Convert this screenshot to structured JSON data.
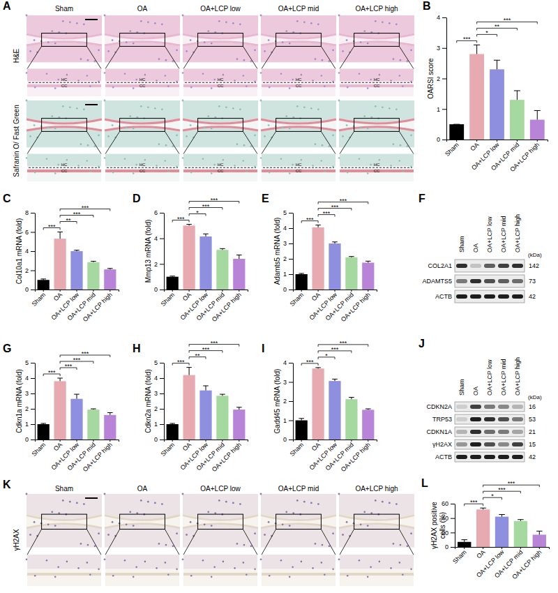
{
  "chart_data": [
    {
      "panel": "B",
      "type": "bar",
      "ylabel": "OARSI score",
      "categories": [
        "Sham",
        "OA",
        "OA+LCP low",
        "OA+LCP mid",
        "OA+LCP high"
      ],
      "values": [
        0.5,
        2.8,
        2.3,
        1.3,
        0.65
      ],
      "errors": [
        0,
        0.3,
        0.3,
        0.3,
        0.3
      ],
      "colors": [
        "#000000",
        "#e6aab0",
        "#8f8fdf",
        "#a6d9a0",
        "#b884d8"
      ],
      "ylim": [
        0,
        4
      ],
      "yticks": [
        0,
        1,
        2,
        3,
        4
      ],
      "comparisons": [
        {
          "groups": [
            0,
            1
          ],
          "label": "***"
        },
        {
          "groups": [
            1,
            2
          ],
          "label": "*"
        },
        {
          "groups": [
            1,
            3
          ],
          "label": "**"
        },
        {
          "groups": [
            1,
            4
          ],
          "label": "***"
        }
      ]
    },
    {
      "panel": "C",
      "type": "bar",
      "ylabel": "Col10a1 mRNA (fold)",
      "categories": [
        "Sham",
        "OA",
        "OA+LCP low",
        "OA+LCP mid",
        "OA+LCP high"
      ],
      "values": [
        1,
        5.3,
        4.0,
        2.85,
        2.1
      ],
      "errors": [
        0.1,
        0.7,
        0.1,
        0.1,
        0.1
      ],
      "colors": [
        "#000000",
        "#e6aab0",
        "#8f8fdf",
        "#a6d9a0",
        "#b884d8"
      ],
      "ylim": [
        0,
        8
      ],
      "yticks": [
        0,
        2,
        4,
        6,
        8
      ],
      "comparisons": [
        {
          "groups": [
            0,
            1
          ],
          "label": "***"
        },
        {
          "groups": [
            1,
            2
          ],
          "label": "**"
        },
        {
          "groups": [
            1,
            3
          ],
          "label": "***"
        },
        {
          "groups": [
            1,
            4
          ],
          "label": "***"
        }
      ]
    },
    {
      "panel": "D",
      "type": "bar",
      "ylabel": "Mmp13 mRNA (fold)",
      "categories": [
        "Sham",
        "OA",
        "OA+LCP low",
        "OA+LCP mid",
        "OA+LCP high"
      ],
      "values": [
        1,
        5.0,
        4.15,
        3.1,
        2.4
      ],
      "errors": [
        0.05,
        0.1,
        0.2,
        0.1,
        0.3
      ],
      "colors": [
        "#000000",
        "#e6aab0",
        "#8f8fdf",
        "#a6d9a0",
        "#b884d8"
      ],
      "ylim": [
        0,
        6
      ],
      "yticks": [
        0,
        2,
        4,
        6
      ],
      "comparisons": [
        {
          "groups": [
            0,
            1
          ],
          "label": "***"
        },
        {
          "groups": [
            1,
            2
          ],
          "label": "*"
        },
        {
          "groups": [
            1,
            3
          ],
          "label": "***"
        },
        {
          "groups": [
            1,
            4
          ],
          "label": "***"
        }
      ]
    },
    {
      "panel": "E",
      "type": "bar",
      "ylabel": "Adamts5 mRNA (fold)",
      "categories": [
        "Sham",
        "OA",
        "OA+LCP low",
        "OA+LCP mid",
        "OA+LCP high"
      ],
      "values": [
        1,
        4.05,
        3.0,
        2.1,
        1.75
      ],
      "errors": [
        0.05,
        0.15,
        0.1,
        0.05,
        0.1
      ],
      "colors": [
        "#000000",
        "#e6aab0",
        "#8f8fdf",
        "#a6d9a0",
        "#b884d8"
      ],
      "ylim": [
        0,
        5
      ],
      "yticks": [
        0,
        1,
        2,
        3,
        4,
        5
      ],
      "comparisons": [
        {
          "groups": [
            0,
            1
          ],
          "label": "***"
        },
        {
          "groups": [
            1,
            2
          ],
          "label": "***"
        },
        {
          "groups": [
            1,
            3
          ],
          "label": "***"
        },
        {
          "groups": [
            1,
            4
          ],
          "label": "***"
        }
      ]
    },
    {
      "panel": "G",
      "type": "bar",
      "ylabel": "Cdkn1a mRNA (fold)",
      "categories": [
        "Sham",
        "OA",
        "OA+LCP low",
        "OA+LCP mid",
        "OA+LCP high"
      ],
      "values": [
        1,
        3.8,
        2.65,
        1.95,
        1.6
      ],
      "errors": [
        0.05,
        0.2,
        0.3,
        0.05,
        0.15
      ],
      "colors": [
        "#000000",
        "#e6aab0",
        "#8f8fdf",
        "#a6d9a0",
        "#b884d8"
      ],
      "ylim": [
        0,
        5
      ],
      "yticks": [
        0,
        1,
        2,
        3,
        4,
        5
      ],
      "comparisons": [
        {
          "groups": [
            0,
            1
          ],
          "label": "***"
        },
        {
          "groups": [
            1,
            2
          ],
          "label": "***"
        },
        {
          "groups": [
            1,
            3
          ],
          "label": "***"
        },
        {
          "groups": [
            1,
            4
          ],
          "label": "***"
        }
      ]
    },
    {
      "panel": "H",
      "type": "bar",
      "ylabel": "Cdkn2a mRNA (fold)",
      "categories": [
        "Sham",
        "OA",
        "OA+LCP low",
        "OA+LCP mid",
        "OA+LCP high"
      ],
      "values": [
        1,
        4.2,
        3.2,
        2.85,
        1.95
      ],
      "errors": [
        0.05,
        0.5,
        0.3,
        0.1,
        0.15
      ],
      "colors": [
        "#000000",
        "#e6aab0",
        "#8f8fdf",
        "#a6d9a0",
        "#b884d8"
      ],
      "ylim": [
        0,
        5
      ],
      "yticks": [
        0,
        1,
        2,
        3,
        4,
        5
      ],
      "comparisons": [
        {
          "groups": [
            0,
            1
          ],
          "label": "***"
        },
        {
          "groups": [
            1,
            2
          ],
          "label": "**"
        },
        {
          "groups": [
            1,
            3
          ],
          "label": "***"
        },
        {
          "groups": [
            1,
            4
          ],
          "label": "***"
        }
      ]
    },
    {
      "panel": "I",
      "type": "bar",
      "ylabel": "Gadd45 mRNA (fold)",
      "categories": [
        "Sham",
        "OA",
        "OA+LCP low",
        "OA+LCP mid",
        "OA+LCP high"
      ],
      "values": [
        1,
        3.7,
        3.05,
        2.1,
        1.55
      ],
      "errors": [
        0.1,
        0.05,
        0.1,
        0.1,
        0.05
      ],
      "colors": [
        "#000000",
        "#e6aab0",
        "#8f8fdf",
        "#a6d9a0",
        "#b884d8"
      ],
      "ylim": [
        0,
        4
      ],
      "yticks": [
        0,
        1,
        2,
        3,
        4
      ],
      "comparisons": [
        {
          "groups": [
            0,
            1
          ],
          "label": "***"
        },
        {
          "groups": [
            1,
            2
          ],
          "label": "*"
        },
        {
          "groups": [
            1,
            3
          ],
          "label": "***"
        },
        {
          "groups": [
            1,
            4
          ],
          "label": "***"
        }
      ]
    },
    {
      "panel": "L",
      "type": "bar",
      "ylabel": "γH2AX positive cells (%)",
      "categories": [
        "Sham",
        "OA",
        "OA+LCP low",
        "OA+LCP mid",
        "OA+LCP high"
      ],
      "values": [
        7,
        52,
        42,
        36,
        17
      ],
      "errors": [
        3,
        2,
        3,
        2,
        5
      ],
      "colors": [
        "#000000",
        "#e6aab0",
        "#8f8fdf",
        "#a6d9a0",
        "#b884d8"
      ],
      "ylim": [
        0,
        60
      ],
      "yticks": [
        0,
        20,
        40,
        60
      ],
      "comparisons": [
        {
          "groups": [
            0,
            1
          ],
          "label": "***"
        },
        {
          "groups": [
            1,
            2
          ],
          "label": "*"
        },
        {
          "groups": [
            1,
            3
          ],
          "label": "***"
        },
        {
          "groups": [
            1,
            4
          ],
          "label": "***"
        }
      ]
    }
  ],
  "histology": [
    {
      "panel": "A",
      "columns": [
        "Sham",
        "OA",
        "OA+LCP low",
        "OA+LCP mid",
        "OA+LCP high"
      ],
      "rows": [
        "H&E",
        "Safranin O/ Fast Green"
      ],
      "zone_labels": [
        "HC",
        "CC"
      ]
    },
    {
      "panel": "K",
      "columns": [
        "Sham",
        "OA",
        "OA+LCP low",
        "OA+LCP mid",
        "OA+LCP high"
      ],
      "rows": [
        "γH2AX"
      ]
    }
  ],
  "blots": [
    {
      "panel": "F",
      "columns": [
        "Sham",
        "OA",
        "OA+LCP low",
        "OA+LCP mid",
        "OA+LCP high"
      ],
      "unit": "(kDa)",
      "rows": [
        {
          "name": "COL2A1",
          "kda": 142,
          "intensity": [
            0.85,
            0.35,
            0.7,
            0.8,
            0.85
          ]
        },
        {
          "name": "ADAMTS5",
          "kda": 73,
          "intensity": [
            0.6,
            0.85,
            0.75,
            0.7,
            0.65
          ]
        },
        {
          "name": "ACTB",
          "kda": 42,
          "intensity": [
            0.9,
            0.9,
            0.9,
            0.9,
            0.9
          ]
        }
      ]
    },
    {
      "panel": "J",
      "columns": [
        "Sham",
        "OA",
        "OA+LCP low",
        "OA+LCP mid",
        "OA+LCP high"
      ],
      "unit": "(kDa)",
      "rows": [
        {
          "name": "CDKN2A",
          "kda": 16,
          "intensity": [
            0.3,
            0.8,
            0.6,
            0.55,
            0.4
          ]
        },
        {
          "name": "TRP53",
          "kda": 53,
          "intensity": [
            0.3,
            0.9,
            0.85,
            0.75,
            0.6
          ]
        },
        {
          "name": "CDKN1A",
          "kda": 21,
          "intensity": [
            0.4,
            0.85,
            0.65,
            0.6,
            0.45
          ]
        },
        {
          "name": "γH2AX",
          "kda": 15,
          "intensity": [
            0.5,
            0.9,
            0.75,
            0.55,
            0.8
          ]
        },
        {
          "name": "ACTB",
          "kda": 42,
          "intensity": [
            0.9,
            0.9,
            0.9,
            0.9,
            0.9
          ]
        }
      ]
    }
  ]
}
